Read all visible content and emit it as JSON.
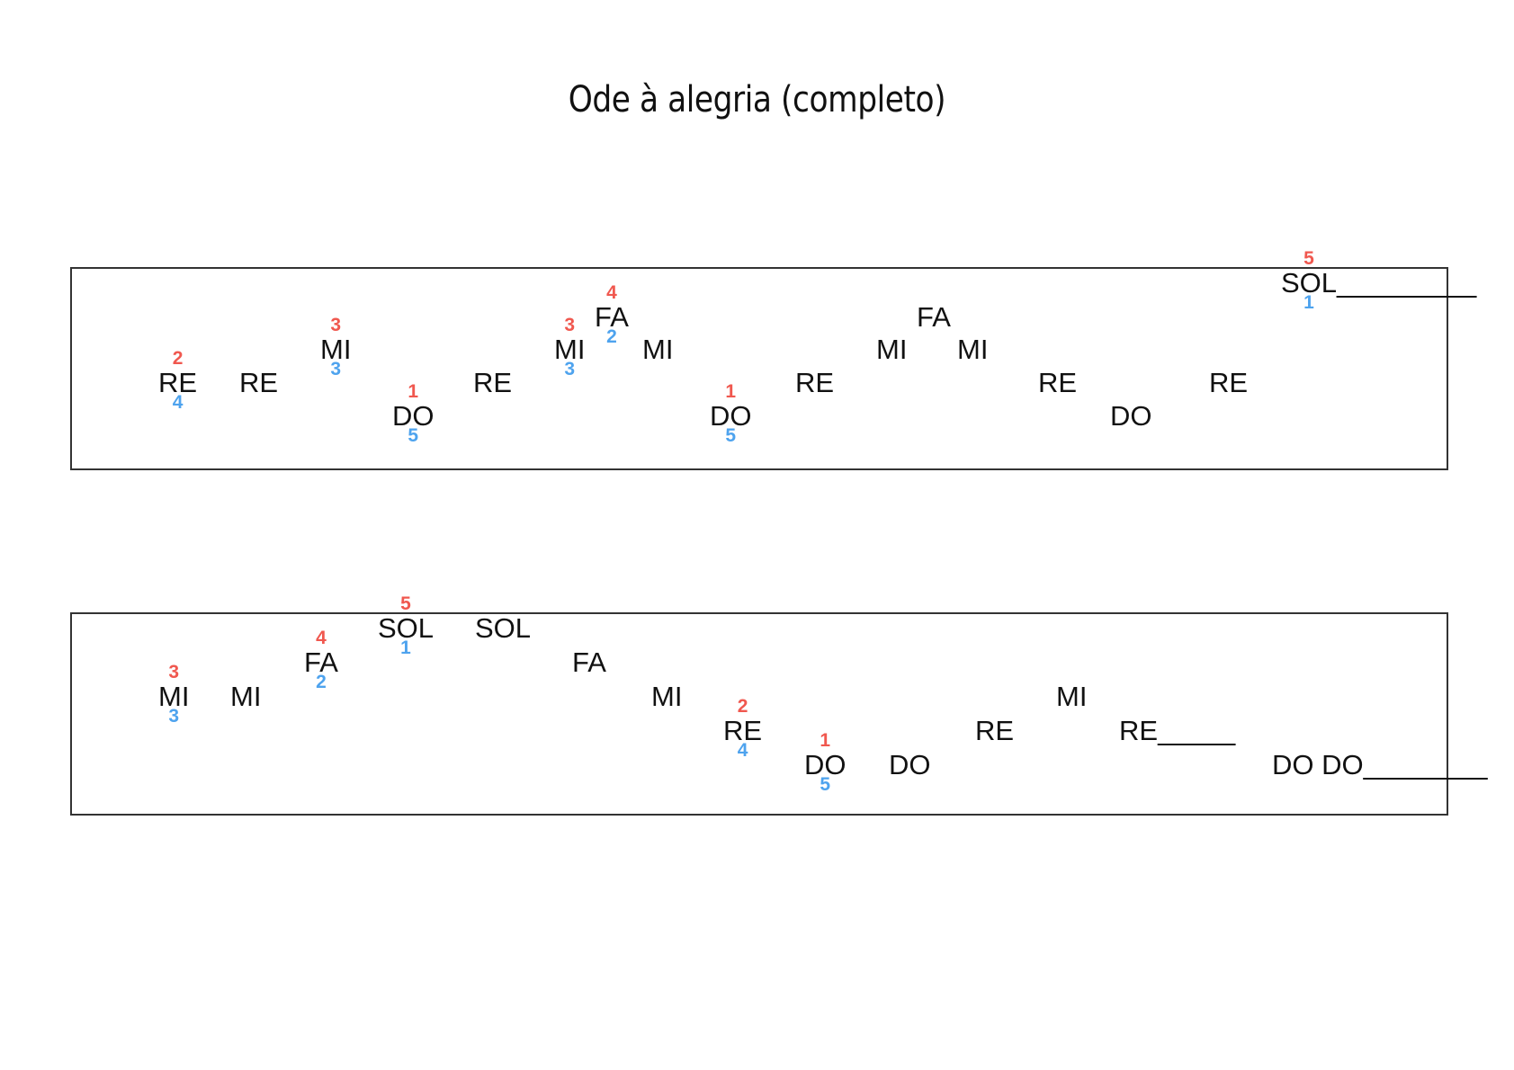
{
  "title": "Ode à alegria (completo)",
  "colors": {
    "top_finger": "#f0584f",
    "bottom_finger": "#4ea3ee",
    "text": "#111111",
    "border": "#333333"
  },
  "staves": [
    {
      "notes": [
        {
          "text": "RE",
          "level": 1,
          "top": "2",
          "bottom": "4"
        },
        {
          "text": "RE",
          "level": 1
        },
        {
          "text": "MI",
          "level": 2,
          "top": "3",
          "bottom": "3"
        },
        {
          "text": "DO",
          "level": 0,
          "top": "1",
          "bottom": "5"
        },
        {
          "text": "RE",
          "level": 1
        },
        {
          "text": "MI",
          "level": 2,
          "top": "3",
          "bottom": "3"
        },
        {
          "text": "FA",
          "level": 3,
          "top": "4",
          "bottom": "2"
        },
        {
          "text": "MI",
          "level": 2
        },
        {
          "text": "DO",
          "level": 0,
          "top": "1",
          "bottom": "5"
        },
        {
          "text": "RE",
          "level": 1
        },
        {
          "text": "MI",
          "level": 2
        },
        {
          "text": "FA",
          "level": 3
        },
        {
          "text": "MI",
          "level": 2
        },
        {
          "text": "RE",
          "level": 1
        },
        {
          "text": "DO",
          "level": 0
        },
        {
          "text": "RE",
          "level": 1
        },
        {
          "text": "SOL_________",
          "level": 4,
          "top": "5",
          "bottom": "1"
        }
      ]
    },
    {
      "notes": [
        {
          "text": "MI",
          "level": 2,
          "top": "3",
          "bottom": "3"
        },
        {
          "text": "MI",
          "level": 2
        },
        {
          "text": "FA",
          "level": 3,
          "top": "4",
          "bottom": "2"
        },
        {
          "text": "SOL",
          "level": 4,
          "top": "5",
          "bottom": "1"
        },
        {
          "text": "SOL",
          "level": 4
        },
        {
          "text": "FA",
          "level": 3
        },
        {
          "text": "MI",
          "level": 2
        },
        {
          "text": "RE",
          "level": 1,
          "top": "2",
          "bottom": "4"
        },
        {
          "text": "DO",
          "level": 0,
          "top": "1",
          "bottom": "5"
        },
        {
          "text": "DO",
          "level": 0
        },
        {
          "text": "RE",
          "level": 1
        },
        {
          "text": "MI",
          "level": 2
        },
        {
          "text": "RE_____",
          "level": 1
        },
        {
          "text": "DO DO________",
          "level": 0
        }
      ]
    }
  ]
}
